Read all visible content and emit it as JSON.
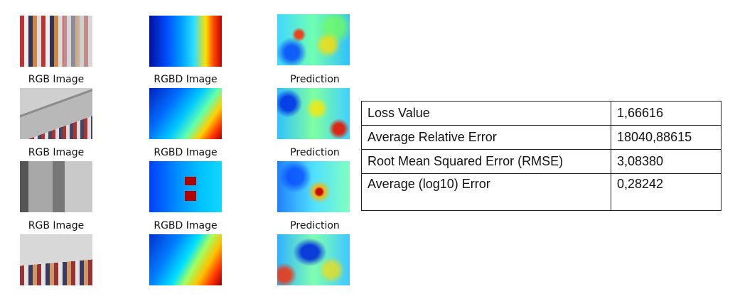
{
  "grid": {
    "rows": [
      {
        "captions": [
          "",
          "",
          ""
        ]
      },
      {
        "captions": [
          "RGB Image",
          "RGBD Image",
          "Prediction"
        ]
      },
      {
        "captions": [
          "RGB Image",
          "RGBD Image",
          "Prediction"
        ]
      },
      {
        "captions": [
          "RGB Image",
          "RGBD Image",
          "Prediction"
        ]
      }
    ]
  },
  "metrics": {
    "rows": [
      {
        "name": "Loss Value",
        "value": "1,66616"
      },
      {
        "name": "Average Relative Error",
        "value": "18040,88615"
      },
      {
        "name": "Root Mean Squared Error (RMSE)",
        "value": "3,08380"
      },
      {
        "name": "Average (log10) Error",
        "value": "0,28242"
      }
    ]
  }
}
